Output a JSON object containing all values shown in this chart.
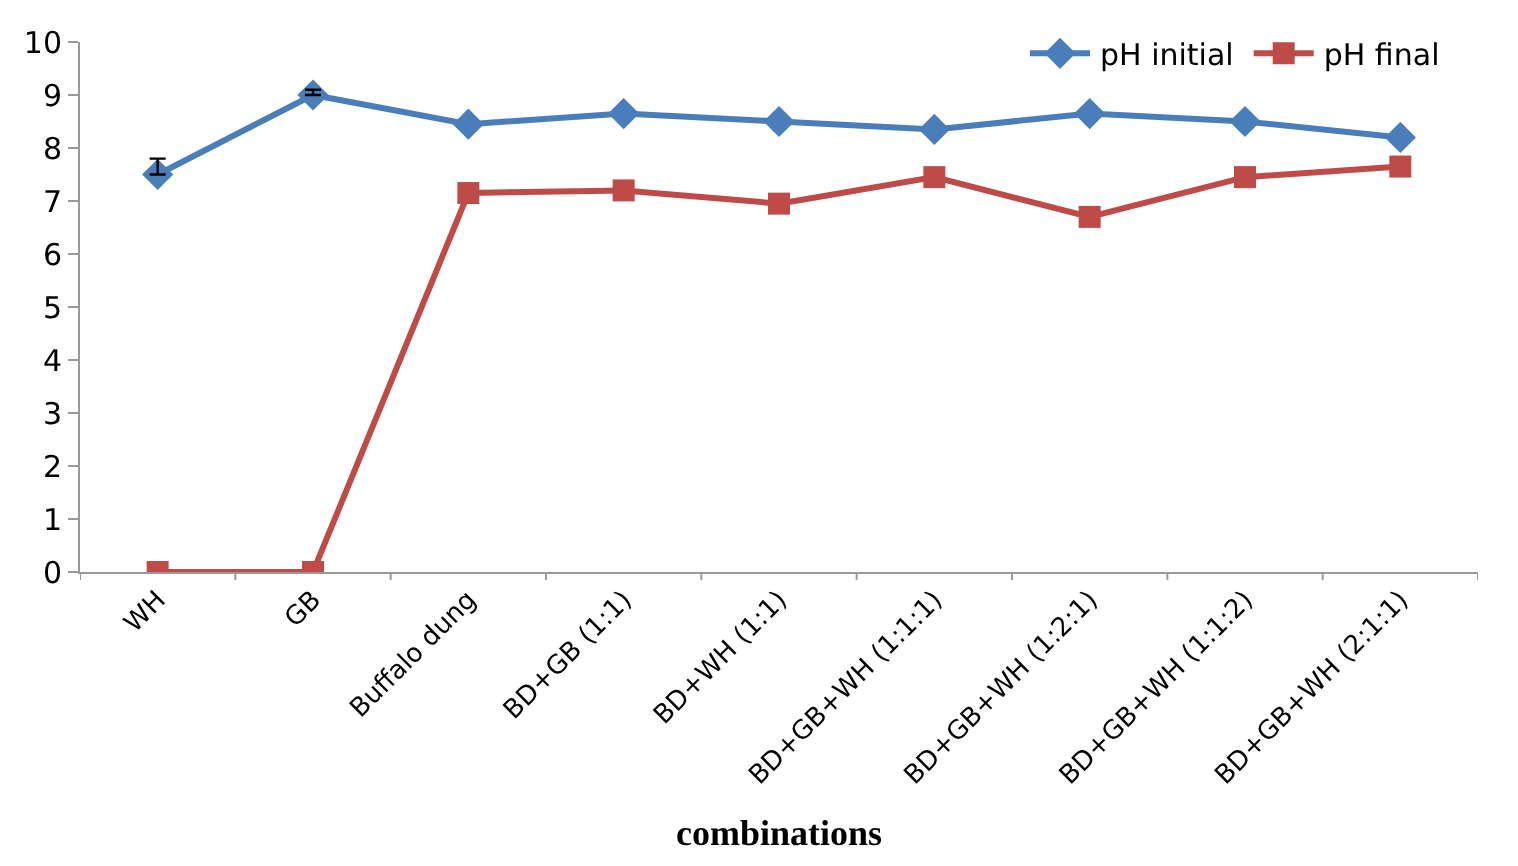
{
  "chart_data": {
    "type": "line",
    "xlabel": "combinations",
    "categories": [
      "WH",
      "GB",
      "Buffalo dung",
      "BD+GB (1:1)",
      "BD+WH (1:1)",
      "BD+GB+WH (1:1:1)",
      "BD+GB+WH (1:2:1)",
      "BD+GB+WH (1:1:2)",
      "BD+GB+WH (2:1:1)"
    ],
    "series": [
      {
        "name": "pH initial",
        "color": "#4a7ebb",
        "marker": "diamond",
        "values": [
          7.5,
          9.0,
          8.45,
          8.65,
          8.5,
          8.35,
          8.65,
          8.5,
          8.2
        ],
        "errors": [
          [
            7.5,
            7.8
          ],
          [
            9.0,
            9.1
          ],
          null,
          null,
          null,
          null,
          null,
          null,
          null
        ]
      },
      {
        "name": "pH final",
        "color": "#be4b48",
        "marker": "square",
        "values": [
          0,
          0,
          7.15,
          7.2,
          6.95,
          7.45,
          6.7,
          7.45,
          7.65
        ]
      }
    ],
    "ylim": [
      0,
      10
    ],
    "yticks": [
      0,
      1,
      2,
      3,
      4,
      5,
      6,
      7,
      8,
      9,
      10
    ],
    "legend": "top right"
  }
}
